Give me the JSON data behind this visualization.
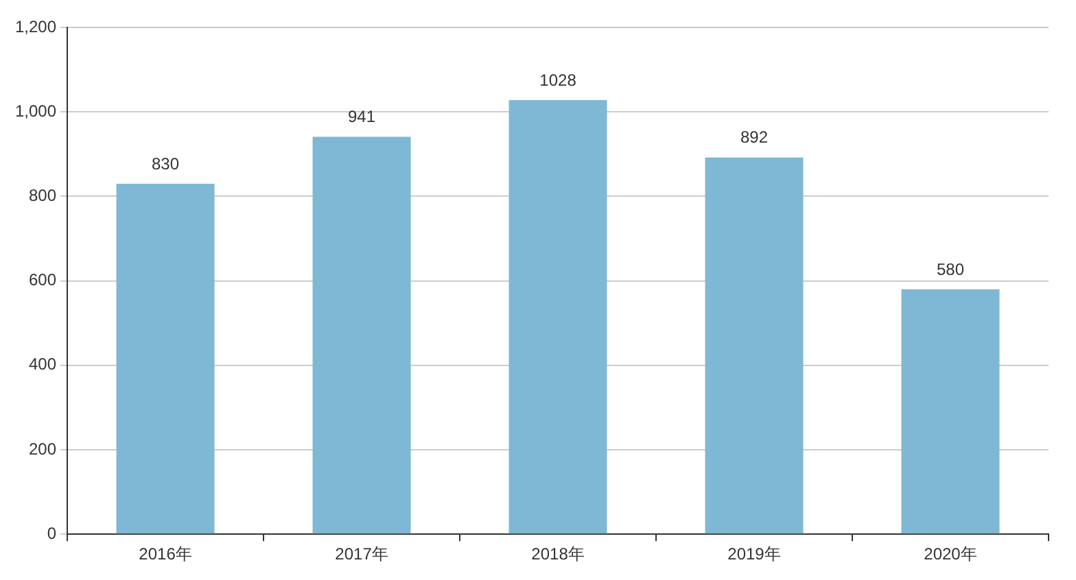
{
  "chart_data": {
    "type": "bar",
    "categories": [
      "2016年",
      "2017年",
      "2018年",
      "2019年",
      "2020年"
    ],
    "values": [
      830,
      941,
      1028,
      892,
      580
    ],
    "color": "#7fb8d4",
    "ylim": [
      0,
      1200
    ],
    "yticks": [
      0,
      200,
      400,
      600,
      800,
      {
        "value": 1000,
        "label": "1,000"
      },
      {
        "value": 1200,
        "label": "1,200"
      }
    ],
    "grid": "y",
    "legend": false,
    "data_labels": true
  }
}
